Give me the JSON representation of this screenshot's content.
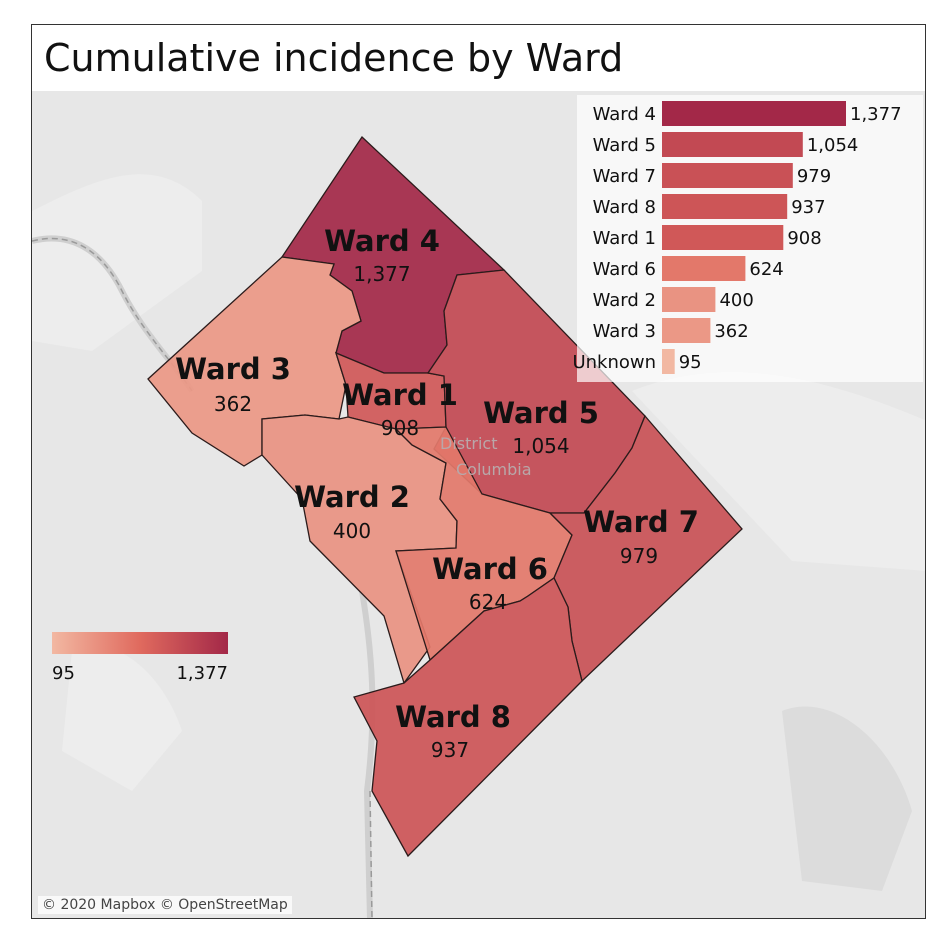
{
  "title": "Cumulative incidence by Ward",
  "attribution": "© 2020 Mapbox © OpenStreetMap",
  "district_label_line1": "District",
  "district_label_line2": "Columbia",
  "colors": {
    "low": "#f2b8a2",
    "high": "#a32848",
    "outline": "#2b1b1b"
  },
  "legend": {
    "min_label": "95",
    "max_label": "1,377",
    "min": 95,
    "max": 1377
  },
  "wards": [
    {
      "id": "ward4",
      "name": "Ward 4",
      "value": 1377,
      "value_label": "1,377"
    },
    {
      "id": "ward5",
      "name": "Ward 5",
      "value": 1054,
      "value_label": "1,054"
    },
    {
      "id": "ward7",
      "name": "Ward 7",
      "value": 979,
      "value_label": "979"
    },
    {
      "id": "ward8",
      "name": "Ward 8",
      "value": 937,
      "value_label": "937"
    },
    {
      "id": "ward1",
      "name": "Ward 1",
      "value": 908,
      "value_label": "908"
    },
    {
      "id": "ward6",
      "name": "Ward 6",
      "value": 624,
      "value_label": "624"
    },
    {
      "id": "ward2",
      "name": "Ward 2",
      "value": 400,
      "value_label": "400"
    },
    {
      "id": "ward3",
      "name": "Ward 3",
      "value": 362,
      "value_label": "362"
    }
  ],
  "chart_data": {
    "type": "bar",
    "orientation": "horizontal",
    "categories": [
      "Ward 4",
      "Ward 5",
      "Ward 7",
      "Ward 8",
      "Ward 1",
      "Ward 6",
      "Ward 2",
      "Ward 3",
      "Unknown"
    ],
    "values": [
      1377,
      1054,
      979,
      937,
      908,
      624,
      400,
      362,
      95
    ],
    "value_labels": [
      "1,377",
      "1,054",
      "979",
      "937",
      "908",
      "624",
      "400",
      "362",
      "95"
    ]
  }
}
